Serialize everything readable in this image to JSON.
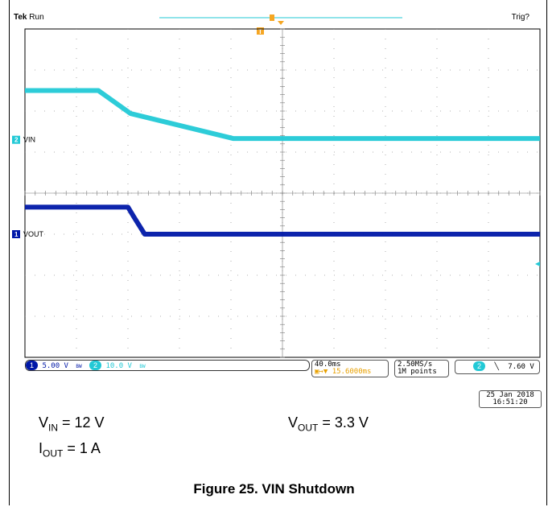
{
  "header": {
    "brand": "Tek",
    "status": "Run",
    "trigger_status": "Trig?"
  },
  "channels": [
    {
      "number": "1",
      "name": "VOUT",
      "scale": "5.00 V",
      "color": "#0018a8"
    },
    {
      "number": "2",
      "name": "VIN",
      "scale": "10.0 V",
      "color": "#22c9d6"
    }
  ],
  "status_bar": {
    "bw_1": "BW",
    "bw_2": "BW",
    "timebase": "40.0ms",
    "trigger_position": "15.6000ms",
    "sample_rate": "2.50MS/s",
    "record_length": "1M points",
    "trigger_channel": "2",
    "trigger_slope": "falling",
    "trigger_level": "7.60 V",
    "date": "25 Jan  2018",
    "time": "16:51:20"
  },
  "conditions": {
    "vin": {
      "label": "V",
      "sub": "IN",
      "value": " = 12 V"
    },
    "vout": {
      "label": "V",
      "sub": "OUT",
      "value": " = 3.3 V"
    },
    "iout": {
      "label": "I",
      "sub": "OUT",
      "value": " = 1 A"
    }
  },
  "caption": "Figure 25. VIN Shutdown",
  "chart_data": {
    "type": "line",
    "grid": true,
    "x_unit": "ms",
    "xlim": [
      0,
      400
    ],
    "x_divisions": 10,
    "y_divisions": 8,
    "series": [
      {
        "name": "VOUT",
        "channel": "1",
        "volts_per_div": 5.0,
        "ground_div_from_top": 5.0,
        "x": [
          0,
          80,
          85,
          93,
          400
        ],
        "y": [
          3.3,
          3.3,
          2.0,
          0.0,
          0.0
        ]
      },
      {
        "name": "VIN",
        "channel": "2",
        "volts_per_div": 10.0,
        "ground_div_from_top": 2.7,
        "x": [
          0,
          57,
          82,
          162,
          400
        ],
        "y": [
          12,
          12,
          6.4,
          0.3,
          0.3
        ]
      }
    ]
  }
}
